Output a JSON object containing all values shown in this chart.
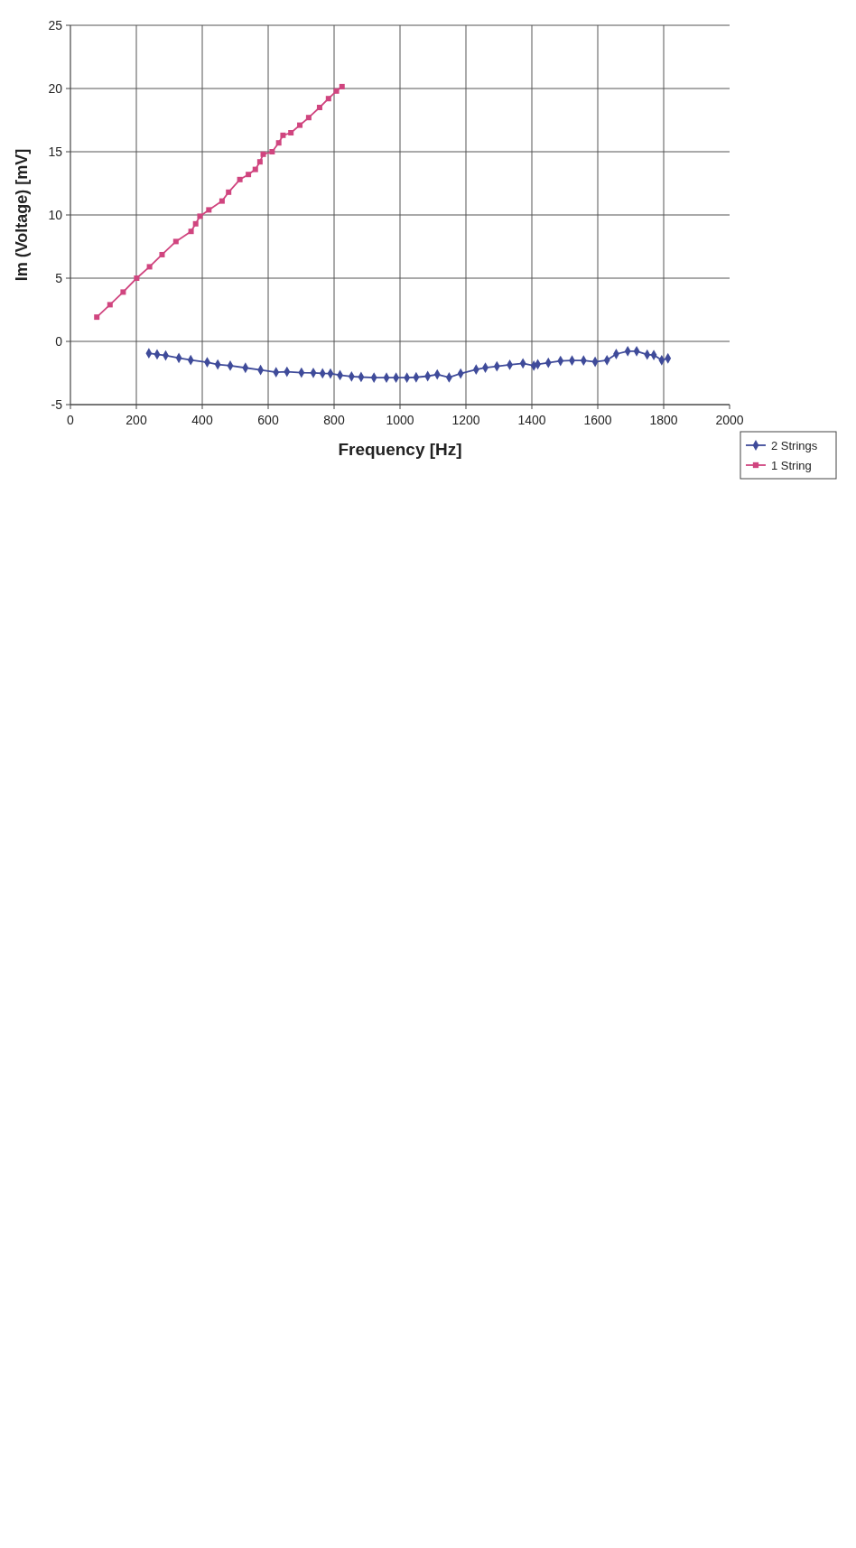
{
  "chart_data": {
    "type": "line",
    "xlabel": "Frequency [Hz]",
    "ylabel": "Im (Voltage) [mV]",
    "xlim": [
      0,
      2000
    ],
    "xticks": [
      0,
      200,
      400,
      600,
      800,
      1000,
      1200,
      1400,
      1600,
      1800,
      2000
    ],
    "ylim": [
      -5,
      25
    ],
    "yticks": [
      -5,
      0,
      5,
      10,
      15,
      20,
      25
    ],
    "grid": true,
    "legend": "bottom right",
    "series": [
      {
        "name": "2 Strings",
        "color": "#3f4b9a",
        "marker": "diamond",
        "x": [
          238,
          263,
          289,
          329,
          365,
          415,
          447,
          485,
          531,
          577,
          624,
          657,
          701,
          737,
          765,
          789,
          818,
          853,
          882,
          921,
          959,
          988,
          1021,
          1049,
          1084,
          1113,
          1149,
          1184,
          1231,
          1259,
          1294,
          1333,
          1373,
          1406,
          1418,
          1450,
          1487,
          1522,
          1557,
          1592,
          1628,
          1656,
          1691,
          1718,
          1750,
          1770,
          1794,
          1813
        ],
        "values": [
          -0.94,
          -1.03,
          -1.11,
          -1.31,
          -1.48,
          -1.65,
          -1.83,
          -1.92,
          -2.09,
          -2.26,
          -2.44,
          -2.4,
          -2.47,
          -2.49,
          -2.53,
          -2.54,
          -2.67,
          -2.77,
          -2.82,
          -2.86,
          -2.87,
          -2.87,
          -2.87,
          -2.84,
          -2.75,
          -2.61,
          -2.85,
          -2.54,
          -2.23,
          -2.08,
          -1.97,
          -1.85,
          -1.74,
          -1.92,
          -1.81,
          -1.69,
          -1.54,
          -1.51,
          -1.51,
          -1.61,
          -1.49,
          -1.0,
          -0.77,
          -0.77,
          -1.05,
          -1.08,
          -1.49,
          -1.34
        ]
      },
      {
        "name": "1 String",
        "color": "#d0457f",
        "marker": "square",
        "x": [
          80,
          120,
          160,
          201,
          240,
          278,
          320,
          366,
          380,
          393,
          420,
          460,
          480,
          514,
          540,
          561,
          575,
          585,
          612,
          632,
          645,
          669,
          696,
          723,
          756,
          783,
          807,
          824
        ],
        "values": [
          1.92,
          2.9,
          3.9,
          5.0,
          5.9,
          6.86,
          7.9,
          8.7,
          9.3,
          9.9,
          10.4,
          11.1,
          11.8,
          12.8,
          13.2,
          13.6,
          14.2,
          14.8,
          15.0,
          15.7,
          16.3,
          16.5,
          17.1,
          17.7,
          18.5,
          19.2,
          19.8,
          20.15
        ]
      }
    ]
  }
}
